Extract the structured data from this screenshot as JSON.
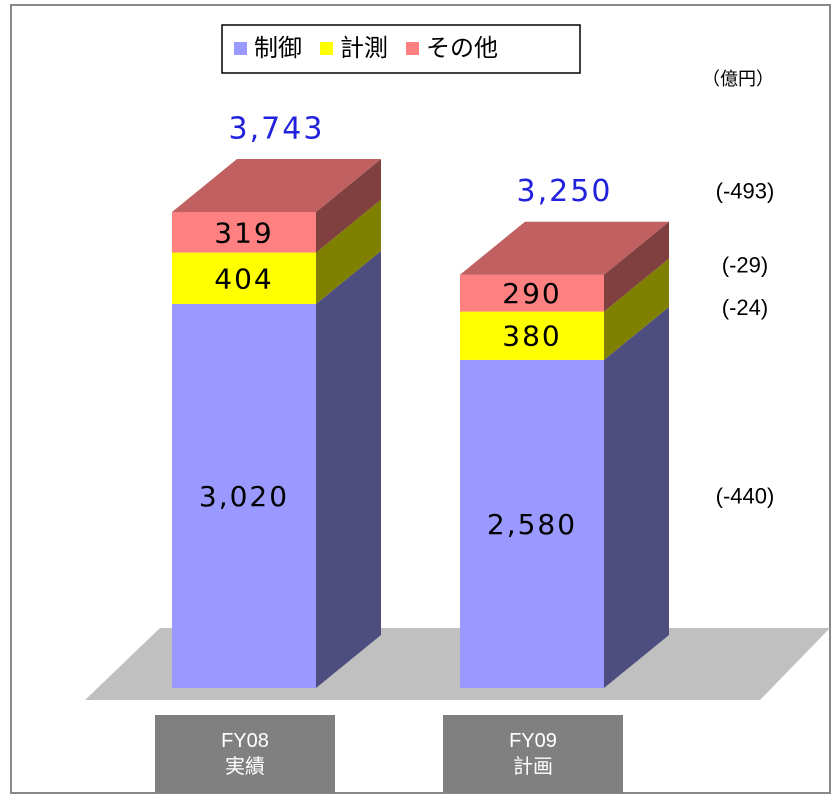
{
  "chart_data": {
    "type": "bar3d_stacked",
    "unit_label": "（億円）",
    "categories": [
      "FY08\n実績",
      "FY09\n計画"
    ],
    "series": [
      {
        "name": "制御",
        "color": "#9999ff",
        "side_color": "#4d4d80",
        "top_color": "#7a7acc",
        "values": [
          3020,
          2580
        ],
        "value_labels": [
          "3,020",
          "2,580"
        ]
      },
      {
        "name": "計測",
        "color": "#ffff00",
        "side_color": "#808000",
        "top_color": "#cccc00",
        "values": [
          404,
          380
        ]
      },
      {
        "name": "その他",
        "color": "#ff8080",
        "side_color": "#804040",
        "top_color": "#c06060",
        "values": [
          319,
          290
        ]
      }
    ],
    "totals": [
      3743,
      3250
    ],
    "total_labels": [
      "3,743",
      "3,250"
    ],
    "total_color": "#2222dd",
    "changes": {
      "series_values": [
        -440,
        -24,
        -29
      ],
      "series_labels": [
        "(-440)",
        "(-24)",
        "(-29)"
      ],
      "total_value": -493,
      "total_label": "(-493)"
    }
  }
}
